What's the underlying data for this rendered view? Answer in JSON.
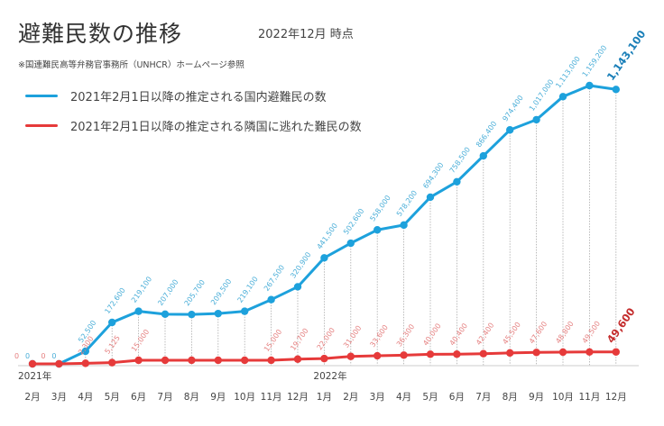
{
  "chart_data": {
    "type": "line",
    "title": "避難民数の推移",
    "subtitle": "2022年12月 時点",
    "source": "※国連難民高等弁務官事務所（UNHCR）ホームページ参照",
    "year_labels": [
      "2021年",
      "2022年"
    ],
    "categories": [
      "2月",
      "3月",
      "4月",
      "5月",
      "6月",
      "7月",
      "8月",
      "9月",
      "10月",
      "11月",
      "12月",
      "1月",
      "2月",
      "3月",
      "4月",
      "5月",
      "6月",
      "7月",
      "8月",
      "9月",
      "10月",
      "11月",
      "12月"
    ],
    "series": [
      {
        "name": "2021年2月1日以降の推定される国内避難民の数",
        "color": "#1da1dc",
        "values": [
          0,
          0,
          52500,
          172600,
          219100,
          207000,
          205700,
          209500,
          219100,
          267500,
          320900,
          441500,
          502600,
          558000,
          578200,
          694300,
          758500,
          866400,
          974400,
          1017000,
          1113000,
          1159200,
          1143100
        ],
        "labels": [
          "0",
          "0",
          "52,500",
          "172,600",
          "219,100",
          "207,000",
          "205,700",
          "209,500",
          "219,100",
          "267,500",
          "320,900",
          "441,500",
          "502,600",
          "558,000",
          "578,200",
          "694,300",
          "758,500",
          "866,400",
          "974,400",
          "1,017,000",
          "1,113,000",
          "1,159,200",
          "1,143,100"
        ]
      },
      {
        "name": "2021年2月1日以降の推定される隣国に逃れた難民の数",
        "color": "#e63a3a",
        "values": [
          0,
          0,
          2300,
          5125,
          15000,
          15000,
          15000,
          15000,
          15000,
          15000,
          19700,
          22000,
          31000,
          33600,
          36300,
          40000,
          40400,
          42400,
          45500,
          47600,
          48800,
          49500,
          49600
        ],
        "labels": [
          "0",
          "0",
          "2,300",
          "5,125",
          "15,000",
          "",
          "",
          "",
          "",
          "15,000",
          "19,700",
          "22,000",
          "31,000",
          "33,600",
          "36,300",
          "40,000",
          "40,400",
          "42,400",
          "45,500",
          "47,600",
          "48,800",
          "49,500",
          "49,600"
        ]
      }
    ],
    "ylim": [
      0,
      1200000
    ],
    "grid": false,
    "legend_position": "top-left"
  }
}
